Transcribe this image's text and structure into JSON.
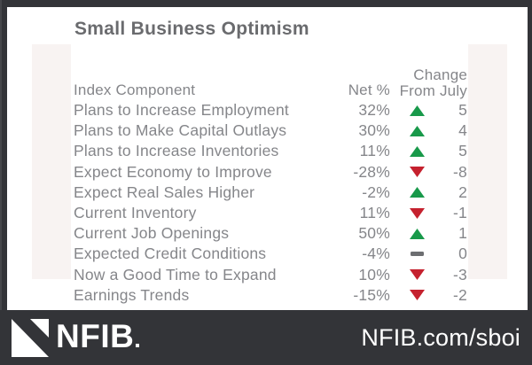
{
  "title": "Small Business Optimism",
  "table": {
    "header": {
      "component": "Index Component",
      "net": "Net %",
      "change_line1": "Change",
      "change_line2": "From July"
    },
    "rows": [
      {
        "component": "Plans to Increase Employment",
        "net": "32%",
        "direction": "up",
        "change": "5"
      },
      {
        "component": "Plans to Make Capital Outlays",
        "net": "30%",
        "direction": "up",
        "change": "4"
      },
      {
        "component": "Plans to Increase Inventories",
        "net": "11%",
        "direction": "up",
        "change": "5"
      },
      {
        "component": "Expect Economy to Improve",
        "net": "-28%",
        "direction": "down",
        "change": "-8"
      },
      {
        "component": "Expect Real Sales Higher",
        "net": "-2%",
        "direction": "up",
        "change": "2"
      },
      {
        "component": "Current Inventory",
        "net": "11%",
        "direction": "down",
        "change": "-1"
      },
      {
        "component": "Current Job Openings",
        "net": "50%",
        "direction": "up",
        "change": "1"
      },
      {
        "component": "Expected Credit Conditions",
        "net": "-4%",
        "direction": "flat",
        "change": "0"
      },
      {
        "component": "Now a Good Time to Expand",
        "net": "10%",
        "direction": "down",
        "change": "-3"
      },
      {
        "component": "Earnings Trends",
        "net": "-15%",
        "direction": "down",
        "change": "-2"
      }
    ]
  },
  "footer": {
    "brand": "NFIB",
    "url": "NFIB.com/sboi"
  },
  "colors": {
    "up_green": "#18994a",
    "down_red": "#c5212e",
    "flat_gray": "#6d6e71",
    "frame_dark": "#333438",
    "stripe_pink": "#f8f3f2",
    "title_text": "#6a6b6e",
    "body_text": "#85868a"
  },
  "chart_data": {
    "type": "table",
    "title": "Small Business Optimism",
    "columns": [
      "Index Component",
      "Net %",
      "Change From July"
    ],
    "rows": [
      [
        "Plans to Increase Employment",
        32,
        5
      ],
      [
        "Plans to Make Capital Outlays",
        30,
        4
      ],
      [
        "Plans to Increase Inventories",
        11,
        5
      ],
      [
        "Expect Economy to Improve",
        -28,
        -8
      ],
      [
        "Expect Real Sales Higher",
        -2,
        2
      ],
      [
        "Current Inventory",
        11,
        -1
      ],
      [
        "Current Job Openings",
        50,
        1
      ],
      [
        "Expected Credit Conditions",
        -4,
        0
      ],
      [
        "Now a Good Time to Expand",
        10,
        -3
      ],
      [
        "Earnings Trends",
        -15,
        -2
      ]
    ],
    "legend": {
      "up": "green up-triangle",
      "down": "red down-triangle",
      "flat": "gray dash"
    }
  }
}
